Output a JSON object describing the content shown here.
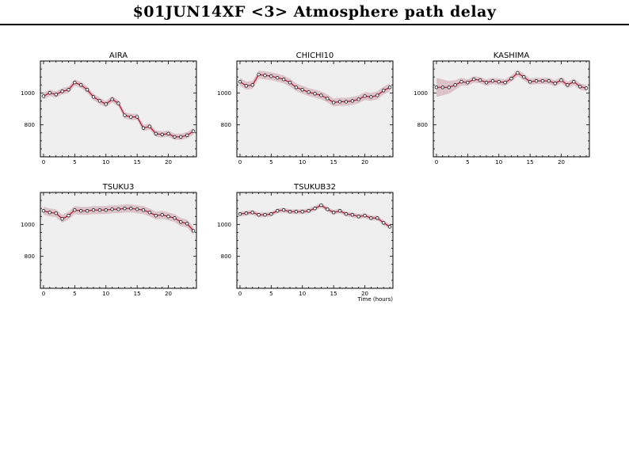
{
  "page": {
    "title": "$01JUN14XF <3>  Atmosphere path delay"
  },
  "chart_data": [
    {
      "type": "line",
      "title": "AIRA",
      "xlim": [
        -0.5,
        24.5
      ],
      "ylim": [
        600,
        1200
      ],
      "xticks": [
        0,
        5,
        10,
        15,
        20
      ],
      "yticks": [
        800,
        1000
      ],
      "xlabel": "",
      "x": [
        0,
        1,
        2,
        3,
        4,
        5,
        6,
        7,
        8,
        9,
        10,
        11,
        12,
        13,
        14,
        15,
        16,
        17,
        18,
        19,
        20,
        21,
        22,
        23,
        24
      ],
      "values": [
        980,
        1000,
        990,
        1010,
        1020,
        1065,
        1050,
        1020,
        975,
        950,
        930,
        960,
        935,
        860,
        850,
        850,
        780,
        790,
        745,
        740,
        745,
        725,
        725,
        735,
        760
      ],
      "band": [
        20,
        20,
        20,
        20,
        20,
        20,
        20,
        20,
        20,
        20,
        20,
        20,
        20,
        20,
        20,
        20,
        20,
        20,
        20,
        20,
        20,
        20,
        20,
        20,
        20
      ]
    },
    {
      "type": "line",
      "title": "CHICHI10",
      "xlim": [
        -0.5,
        24.5
      ],
      "ylim": [
        600,
        1200
      ],
      "xticks": [
        0,
        5,
        10,
        15,
        20
      ],
      "yticks": [
        800,
        1000
      ],
      "xlabel": "",
      "x": [
        0,
        1,
        2,
        3,
        4,
        5,
        6,
        7,
        8,
        9,
        10,
        11,
        12,
        13,
        14,
        15,
        16,
        17,
        18,
        19,
        20,
        21,
        22,
        23,
        24
      ],
      "values": [
        1070,
        1045,
        1050,
        1115,
        1110,
        1105,
        1095,
        1085,
        1065,
        1035,
        1020,
        1005,
        995,
        985,
        965,
        940,
        945,
        945,
        950,
        960,
        980,
        975,
        985,
        1015,
        1035
      ],
      "band": [
        25,
        25,
        25,
        25,
        25,
        25,
        25,
        25,
        25,
        25,
        25,
        25,
        25,
        25,
        25,
        25,
        25,
        25,
        25,
        25,
        25,
        25,
        25,
        25,
        25
      ]
    },
    {
      "type": "line",
      "title": "KASHIMA",
      "xlim": [
        -0.5,
        24.5
      ],
      "ylim": [
        600,
        1200
      ],
      "xticks": [
        0,
        5,
        10,
        15,
        20
      ],
      "yticks": [
        800,
        1000
      ],
      "xlabel": "",
      "x": [
        0,
        1,
        2,
        3,
        4,
        5,
        6,
        7,
        8,
        9,
        10,
        11,
        12,
        13,
        14,
        15,
        16,
        17,
        18,
        19,
        20,
        21,
        22,
        23,
        24
      ],
      "values": [
        1035,
        1035,
        1035,
        1050,
        1070,
        1065,
        1085,
        1080,
        1065,
        1075,
        1070,
        1065,
        1090,
        1125,
        1100,
        1070,
        1075,
        1075,
        1075,
        1060,
        1080,
        1050,
        1070,
        1040,
        1030
      ],
      "band": [
        60,
        50,
        40,
        30,
        25,
        20,
        20,
        20,
        20,
        20,
        20,
        20,
        20,
        20,
        20,
        20,
        20,
        20,
        20,
        20,
        20,
        20,
        20,
        20,
        20
      ]
    },
    {
      "type": "line",
      "title": "TSUKU3",
      "xlim": [
        -0.5,
        24.5
      ],
      "ylim": [
        600,
        1200
      ],
      "xticks": [
        0,
        5,
        10,
        15,
        20
      ],
      "yticks": [
        800,
        1000
      ],
      "xlabel": "",
      "x": [
        0,
        1,
        2,
        3,
        4,
        5,
        6,
        7,
        8,
        9,
        10,
        11,
        12,
        13,
        14,
        15,
        16,
        17,
        18,
        19,
        20,
        21,
        22,
        23,
        24
      ],
      "values": [
        1085,
        1075,
        1070,
        1035,
        1055,
        1090,
        1085,
        1085,
        1090,
        1090,
        1090,
        1095,
        1095,
        1100,
        1100,
        1095,
        1090,
        1075,
        1055,
        1060,
        1050,
        1040,
        1015,
        1005,
        960
      ],
      "band": [
        25,
        25,
        25,
        25,
        25,
        25,
        25,
        25,
        25,
        25,
        25,
        25,
        25,
        25,
        25,
        25,
        25,
        25,
        25,
        25,
        25,
        25,
        25,
        25,
        25
      ]
    },
    {
      "type": "line",
      "title": "TSUKUB32",
      "xlim": [
        -0.5,
        24.5
      ],
      "ylim": [
        600,
        1200
      ],
      "xticks": [
        0,
        5,
        10,
        15,
        20
      ],
      "yticks": [
        800,
        1000
      ],
      "xlabel": "Time (hours)",
      "x": [
        0,
        1,
        2,
        3,
        4,
        5,
        6,
        7,
        8,
        9,
        10,
        11,
        12,
        13,
        14,
        15,
        16,
        17,
        18,
        19,
        20,
        21,
        22,
        23,
        24
      ],
      "values": [
        1065,
        1070,
        1075,
        1060,
        1060,
        1065,
        1085,
        1090,
        1080,
        1080,
        1080,
        1085,
        1100,
        1120,
        1095,
        1075,
        1085,
        1065,
        1060,
        1050,
        1055,
        1040,
        1040,
        1010,
        985
      ],
      "band": [
        15,
        15,
        15,
        15,
        15,
        15,
        15,
        15,
        15,
        15,
        15,
        15,
        15,
        15,
        15,
        15,
        15,
        15,
        15,
        15,
        15,
        15,
        15,
        15,
        15
      ]
    }
  ]
}
